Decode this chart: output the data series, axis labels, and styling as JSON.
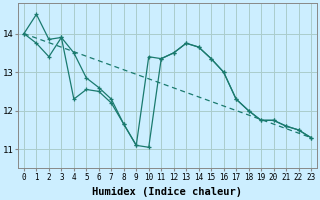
{
  "xlabel": "Humidex (Indice chaleur)",
  "background_color": "#cceeff",
  "grid_color": "#aacccc",
  "line_color": "#1a7a6e",
  "xlim": [
    -0.5,
    23.5
  ],
  "ylim": [
    10.5,
    14.8
  ],
  "yticks": [
    11,
    12,
    13,
    14
  ],
  "xticks": [
    0,
    1,
    2,
    3,
    4,
    5,
    6,
    7,
    8,
    9,
    10,
    11,
    12,
    13,
    14,
    15,
    16,
    17,
    18,
    19,
    20,
    21,
    22,
    23
  ],
  "line1_x": [
    0,
    1,
    2,
    3,
    4,
    5,
    6,
    7,
    8,
    9,
    10,
    11,
    12,
    13,
    14,
    15,
    16,
    17,
    18,
    19,
    20,
    21,
    22,
    23
  ],
  "line1_y": [
    14.0,
    14.5,
    13.85,
    13.9,
    13.5,
    12.85,
    12.6,
    12.3,
    11.65,
    11.1,
    13.4,
    13.35,
    13.5,
    13.75,
    13.65,
    13.35,
    13.0,
    12.3,
    12.0,
    11.75,
    11.75,
    11.6,
    11.5,
    11.3
  ],
  "line2_x": [
    0,
    1,
    2,
    3,
    4,
    5,
    6,
    7,
    8,
    9,
    10,
    11,
    12,
    13,
    14,
    15,
    16,
    17,
    18,
    19,
    20,
    21,
    22,
    23
  ],
  "line2_y": [
    14.0,
    13.75,
    13.4,
    13.9,
    12.3,
    12.55,
    12.5,
    12.2,
    11.65,
    11.1,
    11.05,
    13.35,
    13.5,
    13.75,
    13.65,
    13.35,
    13.0,
    12.3,
    12.0,
    11.75,
    11.75,
    11.6,
    11.5,
    11.3
  ],
  "line3_x": [
    0,
    23
  ],
  "line3_y": [
    14.0,
    11.3
  ],
  "figsize": [
    3.2,
    2.0
  ],
  "dpi": 100,
  "tick_fontsize": 5.5,
  "xlabel_fontsize": 7.5
}
